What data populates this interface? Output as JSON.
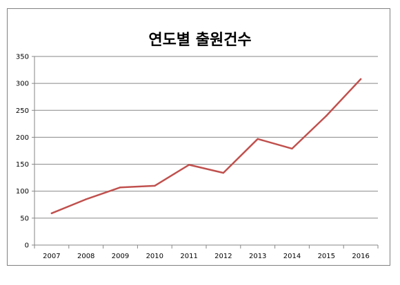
{
  "chart_data": {
    "type": "line",
    "title": "연도별 출원건수",
    "categories": [
      "2007",
      "2008",
      "2009",
      "2010",
      "2011",
      "2012",
      "2013",
      "2014",
      "2015",
      "2016"
    ],
    "series": [
      {
        "values": [
          59,
          85,
          107,
          110,
          149,
          134,
          197,
          179,
          240,
          308
        ],
        "color": "#c0504d"
      }
    ],
    "ylim": [
      0,
      350
    ],
    "yticks": [
      0,
      50,
      100,
      150,
      200,
      250,
      300,
      350
    ],
    "grid": true,
    "legend": "none",
    "colors": {
      "line": "#c0504d",
      "grid": "#868686",
      "axis": "#868686"
    }
  }
}
